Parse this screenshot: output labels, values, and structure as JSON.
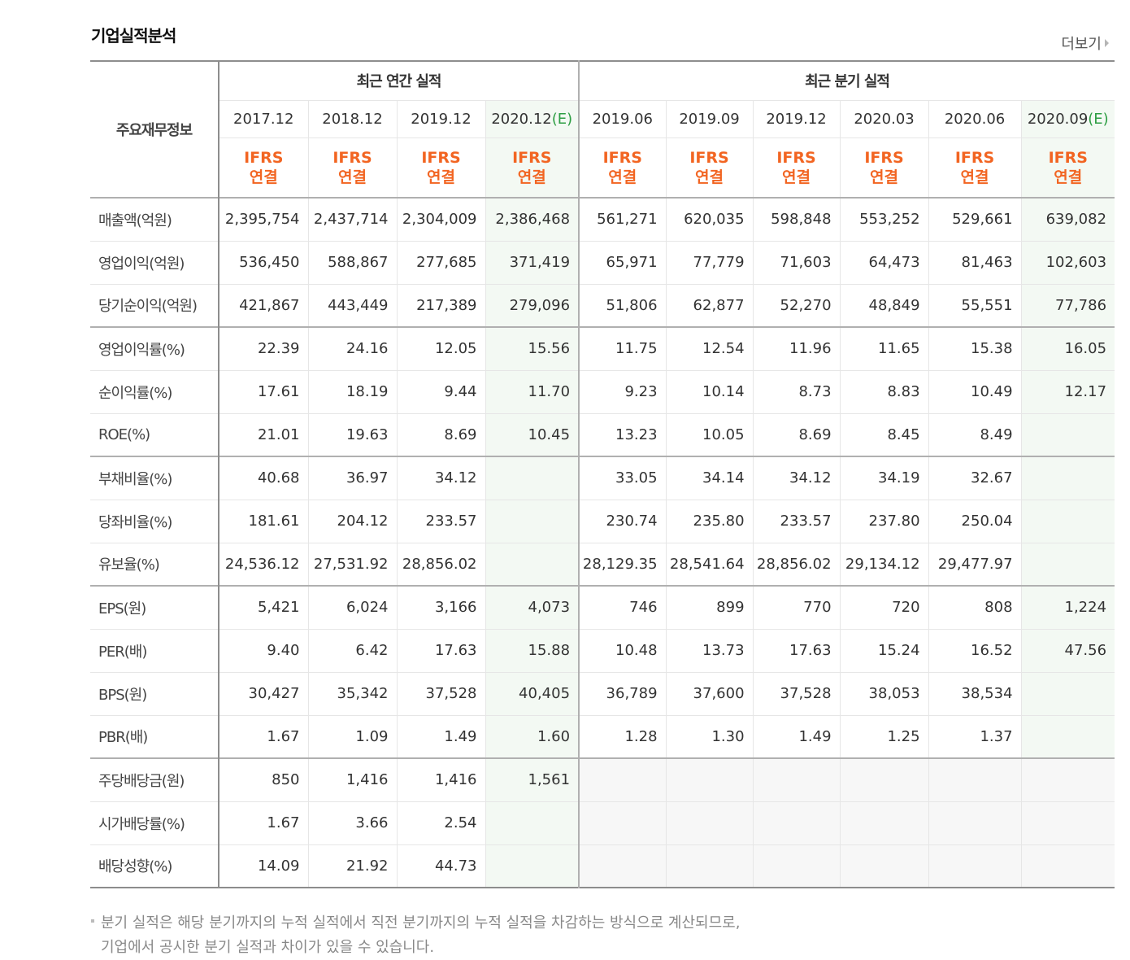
{
  "title": "기업실적분석",
  "more_label": "더보기",
  "header": {
    "corner": "주요재무정보",
    "annual_group": "최근 연간 실적",
    "quarter_group": "최근 분기 실적",
    "ifrs_top": "IFRS",
    "ifrs_bottom": "연결",
    "est_mark": "(E)",
    "annual_periods": [
      "2017.12",
      "2018.12",
      "2019.12",
      "2020.12"
    ],
    "quarter_periods": [
      "2019.06",
      "2019.09",
      "2019.12",
      "2020.03",
      "2020.06",
      "2020.09"
    ]
  },
  "rows": [
    {
      "label": "매출액(억원)",
      "annual": [
        "2,395,754",
        "2,437,714",
        "2,304,009",
        "2,386,468"
      ],
      "quarter": [
        "561,271",
        "620,035",
        "598,848",
        "553,252",
        "529,661",
        "639,082"
      ]
    },
    {
      "label": "영업이익(억원)",
      "annual": [
        "536,450",
        "588,867",
        "277,685",
        "371,419"
      ],
      "quarter": [
        "65,971",
        "77,779",
        "71,603",
        "64,473",
        "81,463",
        "102,603"
      ]
    },
    {
      "label": "당기순이익(억원)",
      "annual": [
        "421,867",
        "443,449",
        "217,389",
        "279,096"
      ],
      "quarter": [
        "51,806",
        "62,877",
        "52,270",
        "48,849",
        "55,551",
        "77,786"
      ]
    },
    {
      "label": "영업이익률(%)",
      "annual": [
        "22.39",
        "24.16",
        "12.05",
        "15.56"
      ],
      "quarter": [
        "11.75",
        "12.54",
        "11.96",
        "11.65",
        "15.38",
        "16.05"
      ]
    },
    {
      "label": "순이익률(%)",
      "annual": [
        "17.61",
        "18.19",
        "9.44",
        "11.70"
      ],
      "quarter": [
        "9.23",
        "10.14",
        "8.73",
        "8.83",
        "10.49",
        "12.17"
      ]
    },
    {
      "label": "ROE(%)",
      "annual": [
        "21.01",
        "19.63",
        "8.69",
        "10.45"
      ],
      "quarter": [
        "13.23",
        "10.05",
        "8.69",
        "8.45",
        "8.49",
        ""
      ]
    },
    {
      "label": "부채비율(%)",
      "annual": [
        "40.68",
        "36.97",
        "34.12",
        ""
      ],
      "quarter": [
        "33.05",
        "34.14",
        "34.12",
        "34.19",
        "32.67",
        ""
      ]
    },
    {
      "label": "당좌비율(%)",
      "annual": [
        "181.61",
        "204.12",
        "233.57",
        ""
      ],
      "quarter": [
        "230.74",
        "235.80",
        "233.57",
        "237.80",
        "250.04",
        ""
      ]
    },
    {
      "label": "유보율(%)",
      "annual": [
        "24,536.12",
        "27,531.92",
        "28,856.02",
        ""
      ],
      "quarter": [
        "28,129.35",
        "28,541.64",
        "28,856.02",
        "29,134.12",
        "29,477.97",
        ""
      ]
    },
    {
      "label": "EPS(원)",
      "annual": [
        "5,421",
        "6,024",
        "3,166",
        "4,073"
      ],
      "quarter": [
        "746",
        "899",
        "770",
        "720",
        "808",
        "1,224"
      ]
    },
    {
      "label": "PER(배)",
      "annual": [
        "9.40",
        "6.42",
        "17.63",
        "15.88"
      ],
      "quarter": [
        "10.48",
        "13.73",
        "17.63",
        "15.24",
        "16.52",
        "47.56"
      ]
    },
    {
      "label": "BPS(원)",
      "annual": [
        "30,427",
        "35,342",
        "37,528",
        "40,405"
      ],
      "quarter": [
        "36,789",
        "37,600",
        "37,528",
        "38,053",
        "38,534",
        ""
      ]
    },
    {
      "label": "PBR(배)",
      "annual": [
        "1.67",
        "1.09",
        "1.49",
        "1.60"
      ],
      "quarter": [
        "1.28",
        "1.30",
        "1.49",
        "1.25",
        "1.37",
        ""
      ]
    },
    {
      "label": "주당배당금(원)",
      "annual": [
        "850",
        "1,416",
        "1,416",
        "1,561"
      ],
      "quarter": [
        "",
        "",
        "",
        "",
        "",
        ""
      ]
    },
    {
      "label": "시가배당률(%)",
      "annual": [
        "1.67",
        "3.66",
        "2.54",
        ""
      ],
      "quarter": [
        "",
        "",
        "",
        "",
        "",
        ""
      ]
    },
    {
      "label": "배당성향(%)",
      "annual": [
        "14.09",
        "21.92",
        "44.73",
        ""
      ],
      "quarter": [
        "",
        "",
        "",
        "",
        "",
        ""
      ]
    }
  ],
  "footnote": {
    "line1": "분기 실적은 해당 분기까지의 누적 실적에서 직전 분기까지의 누적 실적을 차감하는 방식으로 계산되므로,",
    "line2": "기업에서 공시한 분기 실적과 차이가 있을 수 있습니다."
  }
}
